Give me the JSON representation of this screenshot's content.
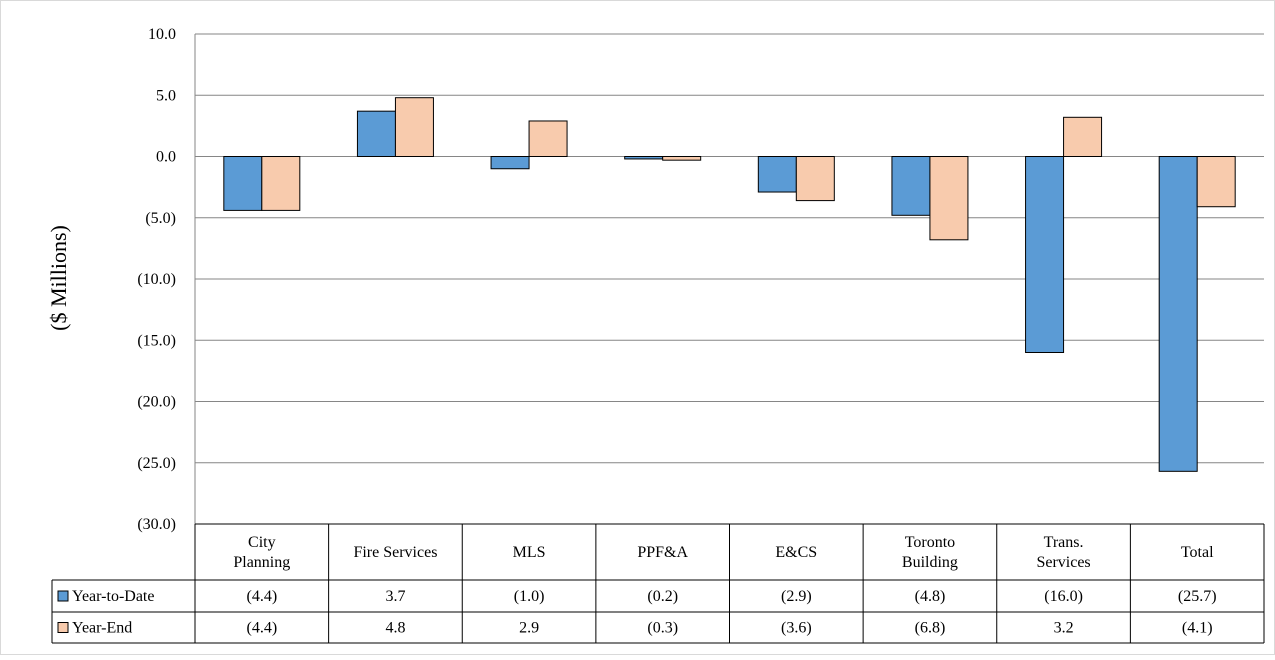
{
  "chart_data": {
    "type": "bar",
    "ylabel": "($ Millions)",
    "ylim": [
      -30,
      10
    ],
    "yticks": [
      10,
      5,
      0,
      -5,
      -10,
      -15,
      -20,
      -25,
      -30
    ],
    "ytick_labels": [
      "10.0",
      "5.0",
      "0.0",
      "(5.0)",
      "(10.0)",
      "(15.0)",
      "(20.0)",
      "(25.0)",
      "(30.0)"
    ],
    "grid": true,
    "categories": [
      [
        "City",
        "Planning"
      ],
      [
        "Fire Services"
      ],
      [
        "MLS"
      ],
      [
        "PPF&A"
      ],
      [
        "E&CS"
      ],
      [
        "Toronto",
        "Building"
      ],
      [
        "Trans.",
        "Services"
      ],
      [
        "Total"
      ]
    ],
    "series": [
      {
        "name": "Year-to-Date",
        "color": "#5b9bd5",
        "values": [
          -4.4,
          3.7,
          -1.0,
          -0.2,
          -2.9,
          -4.8,
          -16.0,
          -25.7
        ],
        "labels": [
          "(4.4)",
          "3.7",
          "(1.0)",
          "(0.2)",
          "(2.9)",
          "(4.8)",
          "(16.0)",
          "(25.7)"
        ]
      },
      {
        "name": "Year-End",
        "color": "#f8cbad",
        "values": [
          -4.4,
          4.8,
          2.9,
          -0.3,
          -3.6,
          -6.8,
          3.2,
          -4.1
        ],
        "labels": [
          "(4.4)",
          "4.8",
          "2.9",
          "(0.3)",
          "(3.6)",
          "(6.8)",
          "3.2",
          "(4.1)"
        ]
      }
    ],
    "legend": "data-table"
  }
}
